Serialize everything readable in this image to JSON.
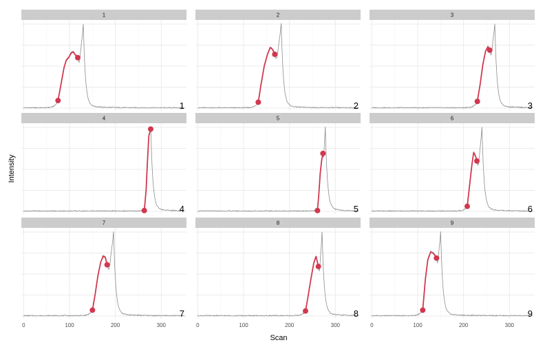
{
  "chart_data": {
    "type": "line",
    "xlabel": "Scan",
    "ylabel": "Intensity",
    "xlim": [
      -5,
      355
    ],
    "x_ticks": [
      0,
      100,
      200,
      300
    ],
    "grid": true,
    "colors": {
      "trace": "#8c8c8c",
      "highlight": "#d1384f",
      "strip": "#cccccc",
      "grid": "#ebebeb"
    },
    "panels": [
      {
        "strip": "1",
        "label": "1",
        "peak_scan": 130,
        "highlight_start": 75,
        "highlight_end": 118,
        "highlight_end_level": 0.6,
        "highlight": [
          [
            75,
            0.09
          ],
          [
            82,
            0.3
          ],
          [
            88,
            0.48
          ],
          [
            93,
            0.57
          ],
          [
            98,
            0.6
          ],
          [
            103,
            0.65
          ],
          [
            108,
            0.67
          ],
          [
            113,
            0.63
          ],
          [
            118,
            0.6
          ]
        ]
      },
      {
        "strip": "2",
        "label": "2",
        "peak_scan": 182,
        "highlight_start": 132,
        "highlight_end": 168,
        "highlight_end_level": 0.64,
        "highlight": [
          [
            132,
            0.07
          ],
          [
            138,
            0.28
          ],
          [
            145,
            0.5
          ],
          [
            152,
            0.64
          ],
          [
            158,
            0.72
          ],
          [
            163,
            0.7
          ],
          [
            168,
            0.64
          ]
        ]
      },
      {
        "strip": "3",
        "label": "3",
        "peak_scan": 268,
        "highlight_start": 230,
        "highlight_end": 257,
        "highlight_end_level": 0.69,
        "highlight": [
          [
            230,
            0.08
          ],
          [
            236,
            0.28
          ],
          [
            242,
            0.52
          ],
          [
            248,
            0.68
          ],
          [
            253,
            0.73
          ],
          [
            257,
            0.69
          ]
        ]
      },
      {
        "strip": "4",
        "label": "4",
        "peak_scan": 277,
        "highlight_start": 263,
        "highlight_end": 277,
        "highlight_end_level": 0.98,
        "highlight": [
          [
            263,
            0.01
          ],
          [
            267,
            0.25
          ],
          [
            270,
            0.6
          ],
          [
            273,
            0.9
          ],
          [
            277,
            0.98
          ]
        ]
      },
      {
        "strip": "5",
        "label": "5",
        "peak_scan": 278,
        "highlight_start": 261,
        "highlight_end": 273,
        "highlight_end_level": 0.69,
        "highlight": [
          [
            261,
            0.01
          ],
          [
            264,
            0.2
          ],
          [
            267,
            0.45
          ],
          [
            270,
            0.6
          ],
          [
            273,
            0.69
          ]
        ]
      },
      {
        "strip": "6",
        "label": "6",
        "peak_scan": 240,
        "highlight_start": 208,
        "highlight_end": 229,
        "highlight_end_level": 0.6,
        "highlight": [
          [
            208,
            0.06
          ],
          [
            213,
            0.3
          ],
          [
            218,
            0.55
          ],
          [
            222,
            0.7
          ],
          [
            226,
            0.66
          ],
          [
            229,
            0.6
          ]
        ]
      },
      {
        "strip": "7",
        "label": "7",
        "peak_scan": 196,
        "highlight_start": 150,
        "highlight_end": 182,
        "highlight_end_level": 0.61,
        "highlight": [
          [
            150,
            0.07
          ],
          [
            156,
            0.26
          ],
          [
            162,
            0.48
          ],
          [
            168,
            0.64
          ],
          [
            173,
            0.71
          ],
          [
            178,
            0.7
          ],
          [
            182,
            0.61
          ]
        ]
      },
      {
        "strip": "8",
        "label": "8",
        "peak_scan": 271,
        "highlight_start": 235,
        "highlight_end": 263,
        "highlight_end_level": 0.59,
        "highlight": [
          [
            235,
            0.06
          ],
          [
            241,
            0.25
          ],
          [
            247,
            0.45
          ],
          [
            253,
            0.63
          ],
          [
            258,
            0.71
          ],
          [
            263,
            0.59
          ]
        ]
      },
      {
        "strip": "9",
        "label": "9",
        "peak_scan": 150,
        "highlight_start": 111,
        "highlight_end": 141,
        "highlight_end_level": 0.69,
        "highlight": [
          [
            111,
            0.07
          ],
          [
            117,
            0.45
          ],
          [
            122,
            0.67
          ],
          [
            128,
            0.76
          ],
          [
            134,
            0.75
          ],
          [
            141,
            0.69
          ]
        ]
      }
    ]
  }
}
